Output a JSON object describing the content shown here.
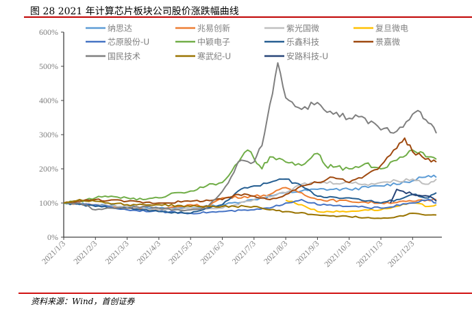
{
  "title": "图 28 2021 年计算芯片板块公司股价涨跌幅曲线",
  "source": "资料来源：Wind，首创证券",
  "chart_data": {
    "type": "line",
    "title": "图 28 2021 年计算芯片板块公司股价涨跌幅曲线",
    "xlabel": "",
    "ylabel": "",
    "x_unit": "months since 2021/1/3",
    "x_ticks": [
      "2021/1/3",
      "2021/2/3",
      "2021/3/3",
      "2021/4/3",
      "2021/5/3",
      "2021/6/3",
      "2021/7/3",
      "2021/8/3",
      "2021/9/3",
      "2021/10/3",
      "2021/11/3",
      "2021/12/3"
    ],
    "y_ticks": [
      "0%",
      "100%",
      "200%",
      "300%",
      "400%",
      "500%",
      "600%"
    ],
    "ylim": [
      0,
      600
    ],
    "xlim": [
      0,
      11.85
    ],
    "grid": false,
    "legend_position": "top",
    "series": [
      {
        "name": "纳思达",
        "color": "#5B9BD5",
        "points": [
          [
            0,
            100
          ],
          [
            1,
            95
          ],
          [
            2,
            90
          ],
          [
            3,
            85
          ],
          [
            4,
            85
          ],
          [
            5,
            95
          ],
          [
            6,
            110
          ],
          [
            7,
            130
          ],
          [
            8,
            140
          ],
          [
            9,
            140
          ],
          [
            10,
            150
          ],
          [
            11,
            165
          ],
          [
            11.5,
            180
          ],
          [
            11.75,
            175
          ]
        ]
      },
      {
        "name": "兆易创新",
        "color": "#ED7D31",
        "points": [
          [
            0,
            100
          ],
          [
            1,
            95
          ],
          [
            2,
            85
          ],
          [
            3,
            80
          ],
          [
            4,
            95
          ],
          [
            4.5,
            90
          ],
          [
            5,
            115
          ],
          [
            6,
            120
          ],
          [
            6.5,
            125
          ],
          [
            7,
            145
          ],
          [
            7.5,
            130
          ],
          [
            8,
            110
          ],
          [
            9,
            105
          ],
          [
            10,
            100
          ],
          [
            11,
            105
          ],
          [
            11.75,
            110
          ]
        ]
      },
      {
        "name": "紫光国微",
        "color": "#BFBFBF",
        "points": [
          [
            0,
            100
          ],
          [
            1,
            95
          ],
          [
            2,
            90
          ],
          [
            3,
            80
          ],
          [
            4,
            85
          ],
          [
            5,
            85
          ],
          [
            6,
            110
          ],
          [
            7,
            130
          ],
          [
            7.5,
            155
          ],
          [
            8,
            160
          ],
          [
            9,
            160
          ],
          [
            9.5,
            155
          ],
          [
            10,
            160
          ],
          [
            11,
            170
          ],
          [
            11.5,
            155
          ],
          [
            11.75,
            170
          ]
        ]
      },
      {
        "name": "复旦微电",
        "color": "#FFC000",
        "points": [
          [
            7,
            108
          ],
          [
            7.5,
            95
          ],
          [
            8,
            75
          ],
          [
            9,
            75
          ],
          [
            9.5,
            80
          ],
          [
            10,
            80
          ],
          [
            10.5,
            90
          ],
          [
            11,
            100
          ],
          [
            11.5,
            90
          ],
          [
            11.75,
            95
          ]
        ]
      },
      {
        "name": "芯原股份-U",
        "color": "#4472C4",
        "points": [
          [
            0,
            100
          ],
          [
            1,
            95
          ],
          [
            2,
            80
          ],
          [
            3,
            75
          ],
          [
            4,
            70
          ],
          [
            5,
            75
          ],
          [
            6,
            80
          ],
          [
            6.5,
            85
          ],
          [
            7,
            100
          ],
          [
            7.5,
            110
          ],
          [
            8,
            95
          ],
          [
            9,
            90
          ],
          [
            10,
            85
          ],
          [
            11,
            100
          ],
          [
            11.5,
            110
          ],
          [
            11.75,
            100
          ]
        ]
      },
      {
        "name": "中颖电子",
        "color": "#70AD47",
        "points": [
          [
            0,
            100
          ],
          [
            0.5,
            105
          ],
          [
            1,
            115
          ],
          [
            1.5,
            120
          ],
          [
            2,
            115
          ],
          [
            2.5,
            110
          ],
          [
            3,
            115
          ],
          [
            3.5,
            130
          ],
          [
            4,
            135
          ],
          [
            4.5,
            150
          ],
          [
            5,
            160
          ],
          [
            5.5,
            218
          ],
          [
            5.8,
            255
          ],
          [
            6,
            230
          ],
          [
            6.25,
            200
          ],
          [
            6.5,
            235
          ],
          [
            7,
            220
          ],
          [
            7.5,
            210
          ],
          [
            8,
            245
          ],
          [
            8.25,
            210
          ],
          [
            8.5,
            205
          ],
          [
            9,
            200
          ],
          [
            9.5,
            215
          ],
          [
            10,
            200
          ],
          [
            10.5,
            225
          ],
          [
            11,
            255
          ],
          [
            11.25,
            250
          ],
          [
            11.5,
            235
          ],
          [
            11.75,
            228
          ]
        ]
      },
      {
        "name": "乐鑫科技",
        "color": "#255E91",
        "points": [
          [
            0,
            100
          ],
          [
            1,
            90
          ],
          [
            2,
            85
          ],
          [
            3,
            75
          ],
          [
            4,
            70
          ],
          [
            4.5,
            85
          ],
          [
            5,
            95
          ],
          [
            5.5,
            135
          ],
          [
            6,
            150
          ],
          [
            6.5,
            160
          ],
          [
            7,
            170
          ],
          [
            7.5,
            150
          ],
          [
            8,
            120
          ],
          [
            9,
            115
          ],
          [
            10,
            100
          ],
          [
            10.5,
            110
          ],
          [
            11,
            125
          ],
          [
            11.5,
            115
          ],
          [
            11.75,
            130
          ]
        ]
      },
      {
        "name": "景嘉微",
        "color": "#9E480E",
        "points": [
          [
            0,
            100
          ],
          [
            0.5,
            105
          ],
          [
            1,
            110
          ],
          [
            2,
            105
          ],
          [
            3,
            100
          ],
          [
            4,
            105
          ],
          [
            5,
            110
          ],
          [
            5.5,
            125
          ],
          [
            6,
            120
          ],
          [
            6.5,
            110
          ],
          [
            7,
            125
          ],
          [
            7.5,
            150
          ],
          [
            8,
            160
          ],
          [
            8.5,
            175
          ],
          [
            9,
            160
          ],
          [
            9.5,
            180
          ],
          [
            10,
            210
          ],
          [
            10.5,
            260
          ],
          [
            10.75,
            290
          ],
          [
            11,
            250
          ],
          [
            11.5,
            230
          ],
          [
            11.75,
            220
          ]
        ]
      },
      {
        "name": "国民技术",
        "color": "#7F7F7F",
        "points": [
          [
            0,
            100
          ],
          [
            0.5,
            100
          ],
          [
            1,
            80
          ],
          [
            1.5,
            85
          ],
          [
            2,
            85
          ],
          [
            2.5,
            90
          ],
          [
            3,
            85
          ],
          [
            3.5,
            80
          ],
          [
            4,
            80
          ],
          [
            4.5,
            85
          ],
          [
            5,
            134
          ],
          [
            5.37,
            190
          ],
          [
            5.5,
            220
          ],
          [
            6,
            220
          ],
          [
            6.25,
            268
          ],
          [
            6.5,
            388
          ],
          [
            6.75,
            510
          ],
          [
            7,
            408
          ],
          [
            7.5,
            374
          ],
          [
            8,
            394
          ],
          [
            8.5,
            360
          ],
          [
            9,
            348
          ],
          [
            9.5,
            348
          ],
          [
            10,
            314
          ],
          [
            10.5,
            310
          ],
          [
            11,
            360
          ],
          [
            11.25,
            366
          ],
          [
            11.5,
            334
          ],
          [
            11.75,
            304
          ]
        ]
      },
      {
        "name": "寒武纪-U",
        "color": "#997300",
        "points": [
          [
            0,
            100
          ],
          [
            0.5,
            110
          ],
          [
            1,
            105
          ],
          [
            2,
            95
          ],
          [
            3,
            95
          ],
          [
            4,
            90
          ],
          [
            5,
            90
          ],
          [
            6,
            90
          ],
          [
            6.5,
            80
          ],
          [
            7,
            75
          ],
          [
            8,
            65
          ],
          [
            9,
            60
          ],
          [
            10,
            55
          ],
          [
            10.5,
            60
          ],
          [
            11,
            70
          ],
          [
            11.5,
            65
          ],
          [
            11.75,
            65
          ]
        ]
      },
      {
        "name": "安路科技-U",
        "color": "#264478",
        "points": [
          [
            10.3,
            100
          ],
          [
            10.5,
            140
          ],
          [
            11,
            125
          ],
          [
            11.5,
            120
          ],
          [
            11.75,
            105
          ]
        ]
      }
    ]
  }
}
